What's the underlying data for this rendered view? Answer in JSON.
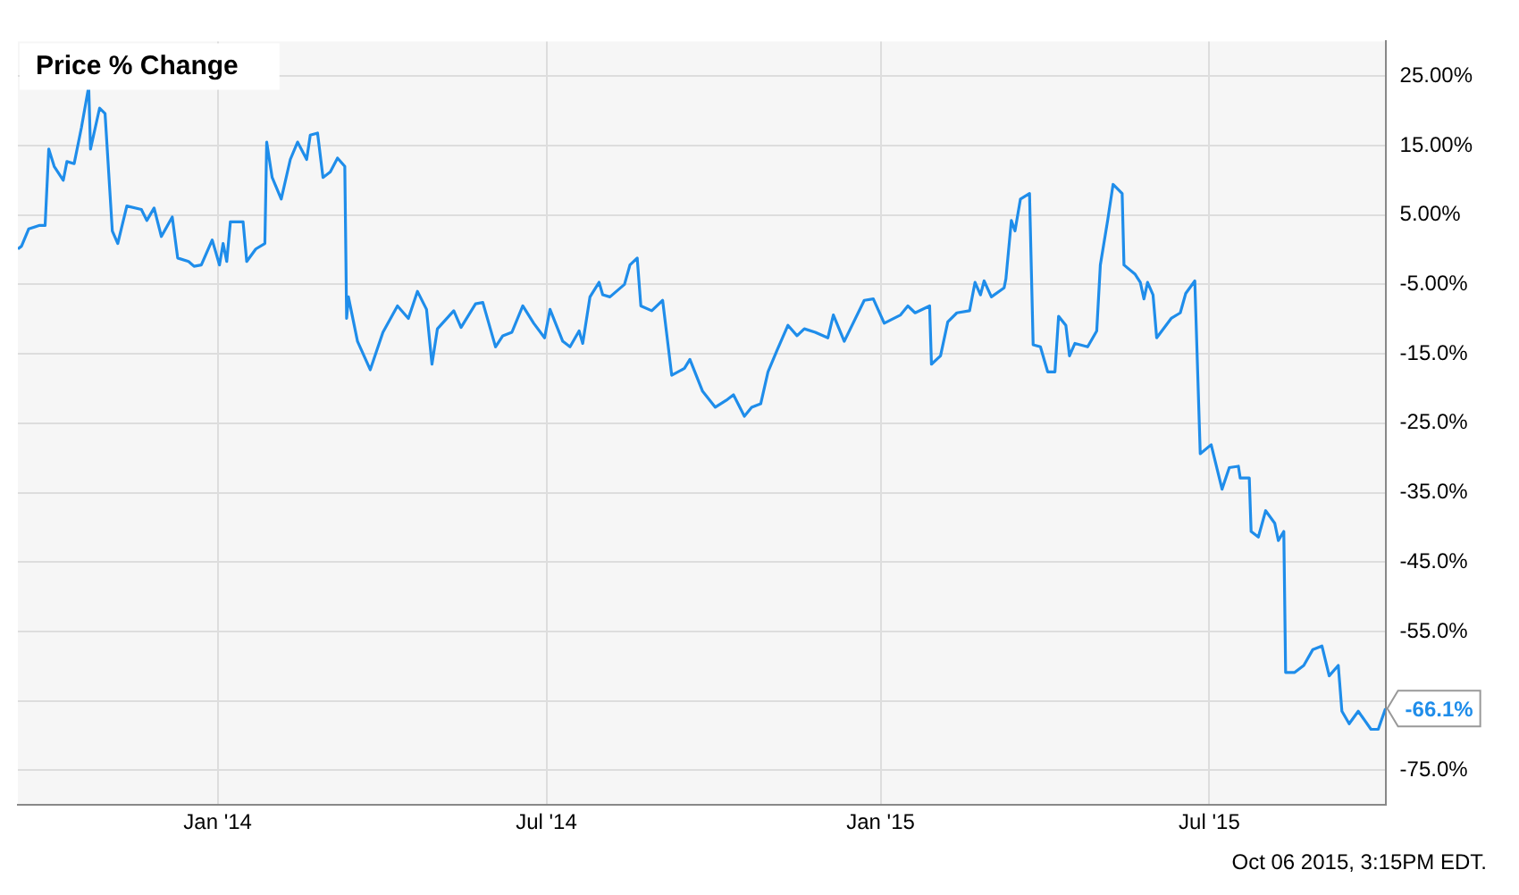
{
  "chart_data": {
    "type": "line",
    "title": "Price % Change",
    "x": [
      "2013-09-13",
      "2013-09-15",
      "2013-09-19",
      "2013-09-25",
      "2013-09-28",
      "2013-09-30",
      "2013-10-03",
      "2013-10-08",
      "2013-10-10",
      "2013-10-14",
      "2013-10-18",
      "2013-10-22",
      "2013-10-23",
      "2013-10-28",
      "2013-10-31",
      "2013-11-04",
      "2013-11-07",
      "2013-11-12",
      "2013-11-20",
      "2013-11-23",
      "2013-11-27",
      "2013-12-01",
      "2013-12-07",
      "2013-12-10",
      "2013-12-16",
      "2013-12-19",
      "2013-12-23",
      "2013-12-29",
      "2014-01-02",
      "2014-01-04",
      "2014-01-06",
      "2014-01-08",
      "2014-01-15",
      "2014-01-17",
      "2014-01-22",
      "2014-01-27",
      "2014-01-28",
      "2014-01-31",
      "2014-02-05",
      "2014-02-10",
      "2014-02-14",
      "2014-02-19",
      "2014-02-21",
      "2014-02-25",
      "2014-02-28",
      "2014-03-04",
      "2014-03-08",
      "2014-03-12",
      "2014-03-13",
      "2014-03-14",
      "2014-03-19",
      "2014-03-26",
      "2014-04-02",
      "2014-04-10",
      "2014-04-16",
      "2014-04-21",
      "2014-04-26",
      "2014-04-29",
      "2014-05-02",
      "2014-05-11",
      "2014-05-15",
      "2014-05-23",
      "2014-05-27",
      "2014-06-03",
      "2014-06-07",
      "2014-06-12",
      "2014-06-18",
      "2014-06-24",
      "2014-06-30",
      "2014-07-03",
      "2014-07-10",
      "2014-07-14",
      "2014-07-19",
      "2014-07-21",
      "2014-07-25",
      "2014-07-30",
      "2014-08-01",
      "2014-08-05",
      "2014-08-13",
      "2014-08-16",
      "2014-08-20",
      "2014-08-22",
      "2014-08-28",
      "2014-09-03",
      "2014-09-08",
      "2014-09-15",
      "2014-09-18",
      "2014-09-25",
      "2014-10-02",
      "2014-10-08",
      "2014-10-12",
      "2014-10-18",
      "2014-10-22",
      "2014-10-27",
      "2014-10-31",
      "2014-11-05",
      "2014-11-11",
      "2014-11-16",
      "2014-11-20",
      "2014-11-26",
      "2014-12-03",
      "2014-12-06",
      "2014-12-12",
      "2014-12-23",
      "2014-12-28",
      "2015-01-03",
      "2015-01-12",
      "2015-01-16",
      "2015-01-20",
      "2015-01-28",
      "2015-01-29",
      "2015-02-03",
      "2015-02-07",
      "2015-02-12",
      "2015-02-19",
      "2015-02-22",
      "2015-02-25",
      "2015-02-27",
      "2015-03-03",
      "2015-03-10",
      "2015-03-11",
      "2015-03-14",
      "2015-03-16",
      "2015-03-19",
      "2015-03-24",
      "2015-03-26",
      "2015-03-30",
      "2015-04-03",
      "2015-04-07",
      "2015-04-09",
      "2015-04-13",
      "2015-04-15",
      "2015-04-18",
      "2015-04-25",
      "2015-04-30",
      "2015-05-02",
      "2015-05-06",
      "2015-05-09",
      "2015-05-14",
      "2015-05-15",
      "2015-05-21",
      "2015-05-24",
      "2015-05-26",
      "2015-05-28",
      "2015-05-31",
      "2015-06-02",
      "2015-06-10",
      "2015-06-15",
      "2015-06-18",
      "2015-06-23",
      "2015-06-26",
      "2015-07-02",
      "2015-07-08",
      "2015-07-12",
      "2015-07-17",
      "2015-07-18",
      "2015-07-23",
      "2015-07-24",
      "2015-07-28",
      "2015-08-01",
      "2015-08-06",
      "2015-08-08",
      "2015-08-11",
      "2015-08-12",
      "2015-08-17",
      "2015-08-22",
      "2015-08-27",
      "2015-09-01",
      "2015-09-05",
      "2015-09-10",
      "2015-09-12",
      "2015-09-16",
      "2015-09-21",
      "2015-09-28",
      "2015-10-02",
      "2015-10-06"
    ],
    "series": [
      {
        "color": "#1f8dea",
        "values": [
          0.1,
          0.5,
          3.0,
          3.5,
          3.5,
          14.5,
          12,
          10,
          12.7,
          12.4,
          17.6,
          23.5,
          14.5,
          20.4,
          19.6,
          2.7,
          0.9,
          6.3,
          5.8,
          4.2,
          6.0,
          1.9,
          4.7,
          -1.2,
          -1.7,
          -2.4,
          -2.2,
          1.4,
          -2.2,
          0.9,
          -1.7,
          4.0,
          4.0,
          -1.7,
          0.1,
          0.9,
          15.5,
          10.4,
          7.3,
          13,
          15.5,
          13,
          16.5,
          16.8,
          10.4,
          11.2,
          13.2,
          12,
          -9.9,
          -6.8,
          -13.2,
          -17.3,
          -11.9,
          -8.1,
          -9.9,
          -6.0,
          -8.6,
          -16.5,
          -11.4,
          -8.8,
          -11.2,
          -7.8,
          -7.6,
          -14,
          -12.4,
          -11.9,
          -8.1,
          -10.6,
          -12.7,
          -8.6,
          -13.2,
          -14,
          -11.7,
          -13.5,
          -6.8,
          -4.7,
          -6.5,
          -6.8,
          -5.0,
          -2.2,
          -1.2,
          -8.1,
          -8.8,
          -7.3,
          -18.1,
          -17.1,
          -15.8,
          -20.4,
          -22.7,
          -21.7,
          -20.9,
          -24,
          -22.7,
          -22.2,
          -17.6,
          -14.5,
          -10.9,
          -12.4,
          -11.4,
          -11.9,
          -12.7,
          -9.4,
          -13.2,
          -7.3,
          -7.1,
          -10.6,
          -9.4,
          -8.1,
          -9.1,
          -8.1,
          -16.5,
          -15.3,
          -10.4,
          -9.1,
          -8.8,
          -4.7,
          -6.5,
          -4.5,
          -6.8,
          -5.5,
          -4.2,
          4.2,
          2.7,
          7.3,
          8.1,
          -13.7,
          -14,
          -17.6,
          -17.6,
          -9.6,
          -10.9,
          -15.3,
          -13.5,
          -14,
          -11.7,
          -2.2,
          4.2,
          9.4,
          8.1,
          -2.2,
          -3.5,
          -4.7,
          -7.1,
          -4.7,
          -6.5,
          -12.7,
          -9.9,
          -9.1,
          -6.3,
          -4.5,
          -29.4,
          -28.1,
          -34.5,
          -31.4,
          -31.2,
          -32.9,
          -32.9,
          -40.6,
          -41.4,
          -37.6,
          -39.4,
          -41.9,
          -40.6,
          -60.9,
          -60.9,
          -59.9,
          -57.6,
          -57.1,
          -61.4,
          -59.9,
          -66.5,
          -68.3,
          -66.5,
          -69.1,
          -69.1,
          -66.1
        ]
      }
    ],
    "xlim": [
      "2013-09-13",
      "2015-10-06"
    ],
    "xticks": [
      {
        "value": "2014-01-01",
        "label": "Jan '14"
      },
      {
        "value": "2014-07-01",
        "label": "Jul '14"
      },
      {
        "value": "2015-01-01",
        "label": "Jan '15"
      },
      {
        "value": "2015-07-01",
        "label": "Jul '15"
      }
    ],
    "ylim": [
      -80,
      30
    ],
    "yticks": [
      {
        "value": 25,
        "label": "25.00%"
      },
      {
        "value": 15,
        "label": "15.00%"
      },
      {
        "value": 5,
        "label": "5.00%"
      },
      {
        "value": -5,
        "label": "-5.00%"
      },
      {
        "value": -15,
        "label": "-15.0%"
      },
      {
        "value": -25,
        "label": "-25.0%"
      },
      {
        "value": -35,
        "label": "-35.0%"
      },
      {
        "value": -45,
        "label": "-45.0%"
      },
      {
        "value": -55,
        "label": "-55.0%"
      },
      {
        "value": -65,
        "label": null
      },
      {
        "value": -75,
        "label": "-75.0%"
      }
    ],
    "grid": true,
    "legend": false,
    "marker": "none",
    "line_style": "solid",
    "annotations": [
      {
        "text": "-66.1%",
        "x": "2015-10-06",
        "y": -66.1
      },
      "Oct 06 2015, 3:15PM EDT."
    ]
  }
}
